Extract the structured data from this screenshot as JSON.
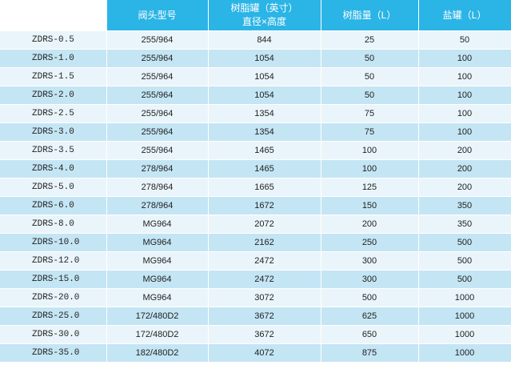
{
  "headers": {
    "col1": "",
    "col2": "阀头型号",
    "col3_line1": "树脂罐（英寸）",
    "col3_line2": "直径×高度",
    "col4": "树脂量（L）",
    "col5": "盐罐（L）"
  },
  "rows": [
    {
      "model": "ZDRS-0.5",
      "valve": "255/964",
      "tank": "844",
      "resin": "25",
      "brine": "50"
    },
    {
      "model": "ZDRS-1.0",
      "valve": "255/964",
      "tank": "1054",
      "resin": "50",
      "brine": "100"
    },
    {
      "model": "ZDRS-1.5",
      "valve": "255/964",
      "tank": "1054",
      "resin": "50",
      "brine": "100"
    },
    {
      "model": "ZDRS-2.0",
      "valve": "255/964",
      "tank": "1054",
      "resin": "50",
      "brine": "100"
    },
    {
      "model": "ZDRS-2.5",
      "valve": "255/964",
      "tank": "1354",
      "resin": "75",
      "brine": "100"
    },
    {
      "model": "ZDRS-3.0",
      "valve": "255/964",
      "tank": "1354",
      "resin": "75",
      "brine": "100"
    },
    {
      "model": "ZDRS-3.5",
      "valve": "255/964",
      "tank": "1465",
      "resin": "100",
      "brine": "200"
    },
    {
      "model": "ZDRS-4.0",
      "valve": "278/964",
      "tank": "1465",
      "resin": "100",
      "brine": "200"
    },
    {
      "model": "ZDRS-5.0",
      "valve": "278/964",
      "tank": "1665",
      "resin": "125",
      "brine": "200"
    },
    {
      "model": "ZDRS-6.0",
      "valve": "278/964",
      "tank": "1672",
      "resin": "150",
      "brine": "350"
    },
    {
      "model": "ZDRS-8.0",
      "valve": "MG964",
      "tank": "2072",
      "resin": "200",
      "brine": "350"
    },
    {
      "model": "ZDRS-10.0",
      "valve": "MG964",
      "tank": "2162",
      "resin": "250",
      "brine": "500"
    },
    {
      "model": "ZDRS-12.0",
      "valve": "MG964",
      "tank": "2472",
      "resin": "300",
      "brine": "500"
    },
    {
      "model": "ZDRS-15.0",
      "valve": "MG964",
      "tank": "2472",
      "resin": "300",
      "brine": "500"
    },
    {
      "model": "ZDRS-20.0",
      "valve": "MG964",
      "tank": "3072",
      "resin": "500",
      "brine": "1000"
    },
    {
      "model": "ZDRS-25.0",
      "valve": "172/480D2",
      "tank": "3672",
      "resin": "625",
      "brine": "1000"
    },
    {
      "model": "ZDRS-30.0",
      "valve": "172/480D2",
      "tank": "3672",
      "resin": "650",
      "brine": "1000"
    },
    {
      "model": "ZDRS-35.0",
      "valve": "182/480D2",
      "tank": "4072",
      "resin": "875",
      "brine": "1000"
    }
  ],
  "colors": {
    "header_bg": "#2bb4e6",
    "row_light": "#eaf5fb",
    "row_dark": "#c4e5f4"
  }
}
